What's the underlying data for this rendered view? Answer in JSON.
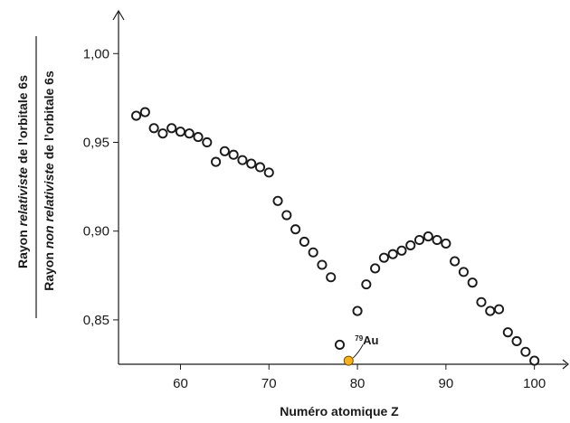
{
  "chart_data": {
    "type": "scatter",
    "xlabel": "Numéro atomique Z",
    "ylabel": {
      "numerator": [
        "Rayon ",
        "relativiste",
        " de l’orbitale 6s"
      ],
      "denominator": [
        "Rayon ",
        "non relativiste",
        " de l’orbitale 6s"
      ]
    },
    "xlim": [
      53,
      103
    ],
    "ylim": [
      0.825,
      1.02
    ],
    "x_ticks": [
      60,
      70,
      80,
      90,
      100
    ],
    "x_tick_labels": [
      "60",
      "70",
      "80",
      "90",
      "100"
    ],
    "y_ticks": [
      0.85,
      0.9,
      0.95,
      1.0
    ],
    "y_tick_labels": [
      "0,85",
      "0,90",
      "0,95",
      "1,00"
    ],
    "grid": false,
    "series": [
      {
        "marker": "open-circle",
        "color": "#1a1a1a",
        "points": [
          [
            55,
            0.965
          ],
          [
            56,
            0.967
          ],
          [
            57,
            0.958
          ],
          [
            58,
            0.955
          ],
          [
            59,
            0.958
          ],
          [
            60,
            0.956
          ],
          [
            61,
            0.955
          ],
          [
            62,
            0.953
          ],
          [
            63,
            0.95
          ],
          [
            64,
            0.939
          ],
          [
            65,
            0.945
          ],
          [
            66,
            0.943
          ],
          [
            67,
            0.94
          ],
          [
            68,
            0.938
          ],
          [
            69,
            0.936
          ],
          [
            70,
            0.933
          ],
          [
            71,
            0.917
          ],
          [
            72,
            0.909
          ],
          [
            73,
            0.901
          ],
          [
            74,
            0.894
          ],
          [
            75,
            0.888
          ],
          [
            76,
            0.881
          ],
          [
            77,
            0.874
          ],
          [
            78,
            0.836
          ],
          [
            80,
            0.855
          ],
          [
            81,
            0.87
          ],
          [
            82,
            0.879
          ],
          [
            83,
            0.885
          ],
          [
            84,
            0.887
          ],
          [
            85,
            0.889
          ],
          [
            86,
            0.892
          ],
          [
            87,
            0.895
          ],
          [
            88,
            0.897
          ],
          [
            89,
            0.895
          ],
          [
            90,
            0.893
          ],
          [
            91,
            0.883
          ],
          [
            92,
            0.877
          ],
          [
            93,
            0.871
          ],
          [
            94,
            0.86
          ],
          [
            95,
            0.855
          ],
          [
            96,
            0.856
          ],
          [
            97,
            0.843
          ],
          [
            98,
            0.838
          ],
          [
            99,
            0.832
          ],
          [
            100,
            0.827
          ]
        ]
      }
    ],
    "highlight": {
      "x": 79,
      "y": 0.827,
      "label_superscript": "79",
      "label": "Au",
      "color": "#f5b21b",
      "edge_color": "#7a5400"
    }
  }
}
